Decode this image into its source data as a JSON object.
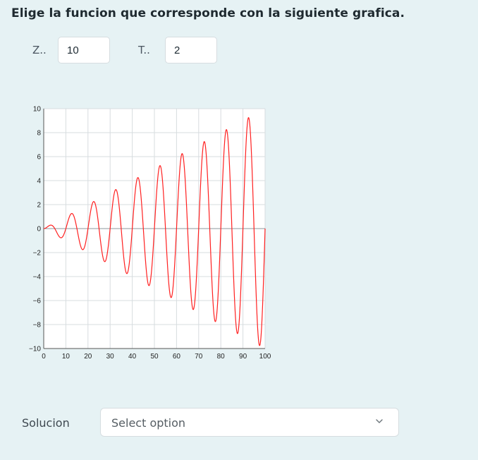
{
  "header": {
    "question": "Elige la funcion que corresponde con la siguiente grafica."
  },
  "params": [
    {
      "label": "Z..",
      "value": "10"
    },
    {
      "label": "T..",
      "value": "2"
    }
  ],
  "answer": {
    "label": "Solucion",
    "placeholder": "Select option",
    "icon": "chevron-down-icon"
  },
  "chart_data": {
    "type": "line",
    "title": "",
    "xlabel": "",
    "ylabel": "",
    "xlim": [
      0,
      100
    ],
    "ylim": [
      -10,
      10
    ],
    "x_ticks": [
      0,
      10,
      20,
      30,
      40,
      50,
      60,
      70,
      80,
      90,
      100
    ],
    "y_ticks": [
      10,
      8,
      6,
      4,
      2,
      0,
      -2,
      -4,
      -6,
      -8,
      -10
    ],
    "grid": true,
    "line_color": "#ff2020",
    "series": [
      {
        "function": "y = (x/10) * sin(2*pi*x/10)",
        "x": [
          0,
          2.5,
          7.5,
          12.5,
          17.5,
          22.5,
          27.5,
          32.5,
          37.5,
          42.5,
          47.5,
          52.5,
          57.5,
          62.5,
          67.5,
          72.5,
          77.5,
          82.5,
          87.5,
          92.5,
          97.5,
          100
        ],
        "y": [
          0,
          0.25,
          -0.75,
          1.25,
          -1.75,
          2.25,
          -2.75,
          3.25,
          -3.75,
          4.25,
          -4.75,
          5.25,
          -5.75,
          6.25,
          -6.75,
          7.25,
          -7.75,
          8.25,
          -8.75,
          9.25,
          -9.75,
          0
        ]
      }
    ]
  }
}
